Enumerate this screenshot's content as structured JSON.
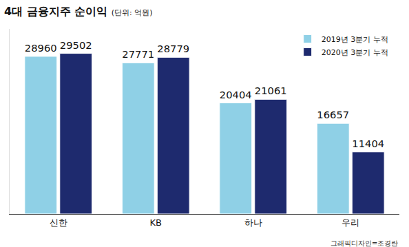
{
  "chart_data": {
    "type": "bar",
    "title": "4대 금융지주 순이익",
    "subtitle": "(단위: 억원)",
    "categories": [
      "신한",
      "KB",
      "하나",
      "우리"
    ],
    "series": [
      {
        "name": "2019년 3분기 누적",
        "color": "#8fd0e6",
        "values": [
          28960,
          27771,
          20404,
          16657
        ]
      },
      {
        "name": "2020년 3분기 누적",
        "color": "#1e2a6e",
        "values": [
          29502,
          28779,
          21061,
          11404
        ]
      }
    ],
    "ylim": [
      0,
      34000
    ],
    "grid": false,
    "legend": "top right",
    "data_labels": true,
    "tick_labels": "x",
    "annotations": [
      "그래픽디자인=조경란"
    ]
  }
}
